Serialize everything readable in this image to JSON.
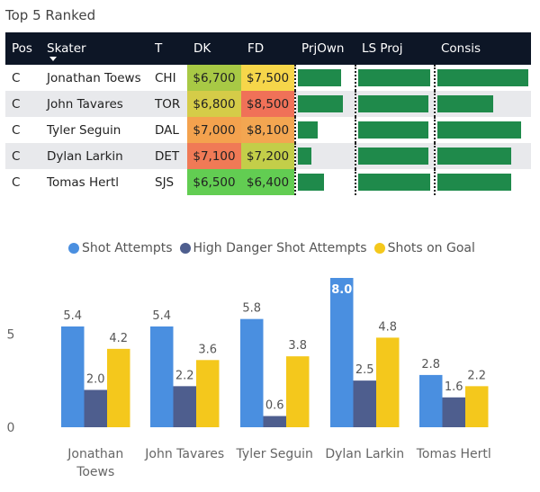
{
  "title": "Top 5 Ranked",
  "table": {
    "columns": [
      "Pos",
      "Skater",
      "T",
      "DK",
      "FD",
      "PrjOwn",
      "LS Proj",
      "Consis"
    ],
    "rows": [
      {
        "pos": "C",
        "skater": "Jonathan Toews",
        "team": "CHI",
        "dk": "$6,700",
        "fd": "$7,500",
        "prjown": 0.8,
        "lsproj": 0.95,
        "consis": 0.98,
        "dk_color": "#a8c945",
        "fd_color": "#f6d64a"
      },
      {
        "pos": "C",
        "skater": "John Tavares",
        "team": "TOR",
        "dk": "$6,800",
        "fd": "$8,500",
        "prjown": 0.83,
        "lsproj": 0.93,
        "consis": 0.6,
        "dk_color": "#d5cc48",
        "fd_color": "#f07158"
      },
      {
        "pos": "C",
        "skater": "Tyler Seguin",
        "team": "DAL",
        "dk": "$7,000",
        "fd": "$8,100",
        "prjown": 0.37,
        "lsproj": 0.93,
        "consis": 0.9,
        "dk_color": "#f4a24e",
        "fd_color": "#f3a651"
      },
      {
        "pos": "C",
        "skater": "Dylan Larkin",
        "team": "DET",
        "dk": "$7,100",
        "fd": "$7,200",
        "prjown": 0.25,
        "lsproj": 0.93,
        "consis": 0.8,
        "dk_color": "#f07a56",
        "fd_color": "#c3ce49"
      },
      {
        "pos": "C",
        "skater": "Tomas Hertl",
        "team": "SJS",
        "dk": "$6,500",
        "fd": "$6,400",
        "prjown": 0.48,
        "lsproj": 0.95,
        "consis": 0.8,
        "dk_color": "#62cd52",
        "fd_color": "#62cd52"
      }
    ]
  },
  "chart_data": {
    "type": "bar",
    "categories": [
      "Jonathan Toews",
      "John Tavares",
      "Tyler Seguin",
      "Dylan Larkin",
      "Tomas Hertl"
    ],
    "category_lines": [
      [
        "Jonathan",
        "Toews"
      ],
      [
        "John Tavares"
      ],
      [
        "Tyler Seguin"
      ],
      [
        "Dylan Larkin"
      ],
      [
        "Tomas Hertl"
      ]
    ],
    "series": [
      {
        "name": "Shot Attempts",
        "color": "#4a8fe0",
        "values": [
          5.4,
          5.4,
          5.8,
          8.0,
          2.8
        ]
      },
      {
        "name": "High Danger Shot Attempts",
        "color": "#4e5e8e",
        "values": [
          2.0,
          2.2,
          0.6,
          2.5,
          1.6
        ]
      },
      {
        "name": "Shots on Goal",
        "color": "#f4c81c",
        "values": [
          4.2,
          3.6,
          3.8,
          4.8,
          2.2
        ]
      }
    ],
    "data_labels": [
      [
        "5.4",
        "5.4",
        "5.8",
        "8.0",
        "2.8"
      ],
      [
        "2.0",
        "2.2",
        "0.6",
        "2.5",
        "1.6"
      ],
      [
        "4.2",
        "3.6",
        "3.8",
        "4.8",
        "2.2"
      ]
    ],
    "yticks": [
      0,
      5
    ],
    "ylim": [
      0,
      8.6
    ],
    "legend": "top-center",
    "grid": false
  }
}
